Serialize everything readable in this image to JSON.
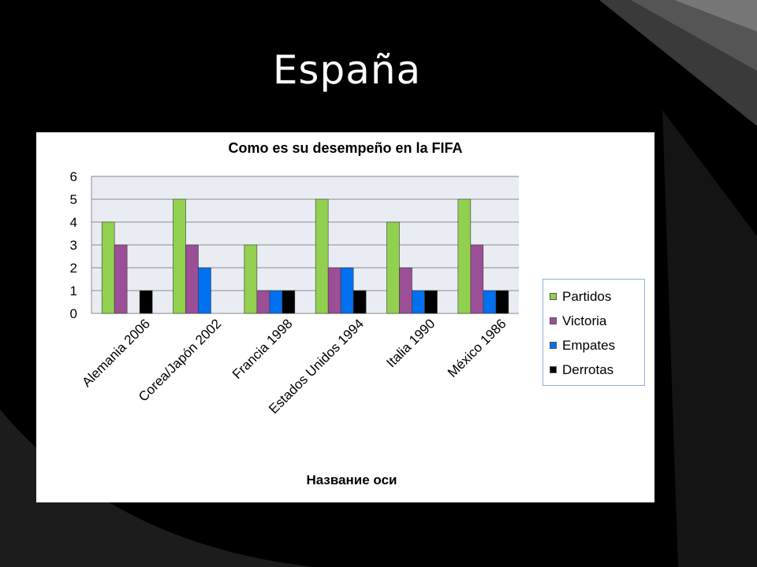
{
  "slide": {
    "title": "España"
  },
  "colors": {
    "background": "#000000",
    "plot_area": "#e9edf3",
    "partidos": "#92d050",
    "victoria": "#9b4f96",
    "empates": "#0070f0",
    "derrotas": "#000000",
    "legend_border": "#8db3e2"
  },
  "chart_data": {
    "type": "bar",
    "title": "Como es su desempeño en la FIFA",
    "xlabel": "Название оси",
    "ylabel": "",
    "ylim": [
      0,
      6
    ],
    "yticks": [
      "0",
      "1",
      "2",
      "3",
      "4",
      "5",
      "6"
    ],
    "categories": [
      "Alemania 2006",
      "Corea/Japón 2002",
      "Francia 1998",
      "Estados Unidos 1994",
      "Italia 1990",
      "México 1986"
    ],
    "series": [
      {
        "name": "Partidos",
        "values": [
          4,
          5,
          3,
          5,
          4,
          5
        ]
      },
      {
        "name": "Victoria",
        "values": [
          3,
          3,
          1,
          2,
          2,
          3
        ]
      },
      {
        "name": "Empates",
        "values": [
          0,
          2,
          1,
          2,
          1,
          1
        ]
      },
      {
        "name": "Derrotas",
        "values": [
          1,
          0,
          1,
          1,
          1,
          1
        ]
      }
    ],
    "legend_position": "right",
    "grid": true
  }
}
